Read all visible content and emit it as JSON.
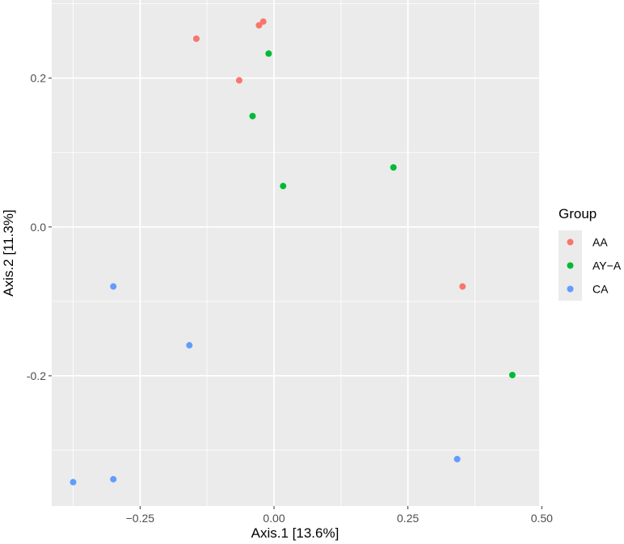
{
  "chart_data": {
    "type": "scatter",
    "xlabel": "Axis.1   [13.6%]",
    "ylabel": "Axis.2   [11.3%]",
    "xlim": [
      -0.415,
      0.495
    ],
    "ylim": [
      -0.375,
      0.305
    ],
    "x_ticks": [
      {
        "value": -0.25,
        "label": "−0.25"
      },
      {
        "value": 0.0,
        "label": "0.00"
      },
      {
        "value": 0.25,
        "label": "0.25"
      },
      {
        "value": 0.5,
        "label": "0.50"
      }
    ],
    "y_ticks": [
      {
        "value": -0.2,
        "label": "-0.2"
      },
      {
        "value": 0.0,
        "label": "0.0"
      },
      {
        "value": 0.2,
        "label": "0.2"
      }
    ],
    "grid": true,
    "legend": {
      "title": "Group",
      "placement": "right",
      "items": [
        {
          "label": "AA",
          "color": "#F8766D"
        },
        {
          "label": "AY−A",
          "color": "#00BA38"
        },
        {
          "label": "CA",
          "color": "#619CFF"
        }
      ]
    },
    "series": [
      {
        "name": "AA",
        "color": "#F8766D",
        "points": [
          {
            "x": -0.145,
            "y": 0.253
          },
          {
            "x": -0.028,
            "y": 0.271
          },
          {
            "x": -0.02,
            "y": 0.276
          },
          {
            "x": -0.065,
            "y": 0.197
          },
          {
            "x": 0.352,
            "y": -0.08
          }
        ]
      },
      {
        "name": "AY−A",
        "color": "#00BA38",
        "points": [
          {
            "x": -0.01,
            "y": 0.233
          },
          {
            "x": -0.04,
            "y": 0.149
          },
          {
            "x": 0.017,
            "y": 0.055
          },
          {
            "x": 0.223,
            "y": 0.08
          },
          {
            "x": 0.445,
            "y": -0.199
          }
        ]
      },
      {
        "name": "CA",
        "color": "#619CFF",
        "points": [
          {
            "x": -0.3,
            "y": -0.08
          },
          {
            "x": -0.158,
            "y": -0.159
          },
          {
            "x": 0.342,
            "y": -0.312
          },
          {
            "x": -0.3,
            "y": -0.339
          },
          {
            "x": -0.375,
            "y": -0.343
          }
        ]
      }
    ]
  },
  "colors": {
    "panel_background": "#EBEBEB",
    "grid_major": "#FFFFFF",
    "tick_label": "#4D4D4D",
    "legend_key_background": "#EBEBEB"
  }
}
